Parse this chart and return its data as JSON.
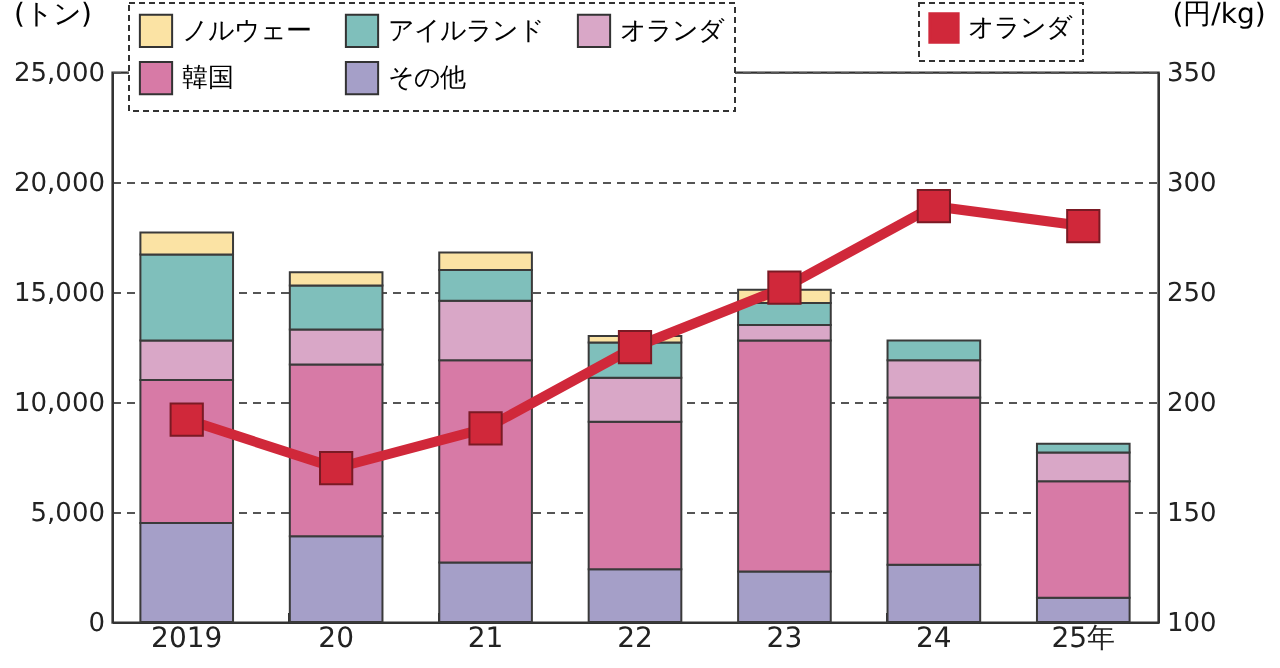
{
  "chart_data": {
    "type": "bar",
    "stacked": true,
    "categories": [
      "2019",
      "20",
      "21",
      "22",
      "23",
      "24",
      "25年"
    ],
    "ylabel": "(トン)",
    "y2label": "(円/kg)",
    "ylim": [
      0,
      25000
    ],
    "yticks": [
      0,
      {
        "value": 5000,
        "label": "5,000"
      },
      {
        "value": 10000,
        "label": "10,000"
      },
      {
        "value": 15000,
        "label": "15,000"
      },
      {
        "value": 20000,
        "label": "20,000"
      },
      {
        "value": 25000,
        "label": "25,000"
      }
    ],
    "y2lim": [
      100,
      350
    ],
    "y2ticks": [
      100,
      150,
      200,
      250,
      300,
      350
    ],
    "grid": "y",
    "legend": "top",
    "marker": "square",
    "line_style": "solid",
    "series": [
      {
        "name": "その他",
        "color": "#a59fc8",
        "values": [
          4500,
          3900,
          2700,
          2400,
          2300,
          2600,
          1100
        ]
      },
      {
        "name": "韓国",
        "color": "#d77aa6",
        "values": [
          6500,
          7800,
          9200,
          6700,
          10500,
          7600,
          5300
        ]
      },
      {
        "name": "オランダ",
        "color": "#d9a7c7",
        "values": [
          1800,
          1600,
          2700,
          2000,
          700,
          1700,
          1300
        ]
      },
      {
        "name": "アイルランド",
        "color": "#7fbfbb",
        "values": [
          3900,
          2000,
          1400,
          1600,
          1000,
          900,
          400
        ]
      },
      {
        "name": "ノルウェー",
        "color": "#fbe3a4",
        "values": [
          1000,
          600,
          800,
          300,
          600,
          null,
          null
        ]
      },
      {
        "name": "オランダ",
        "type": "line",
        "axis": "y2",
        "color": "#d0283a",
        "values": [
          192,
          170,
          188,
          225,
          252,
          289,
          280
        ]
      }
    ]
  }
}
